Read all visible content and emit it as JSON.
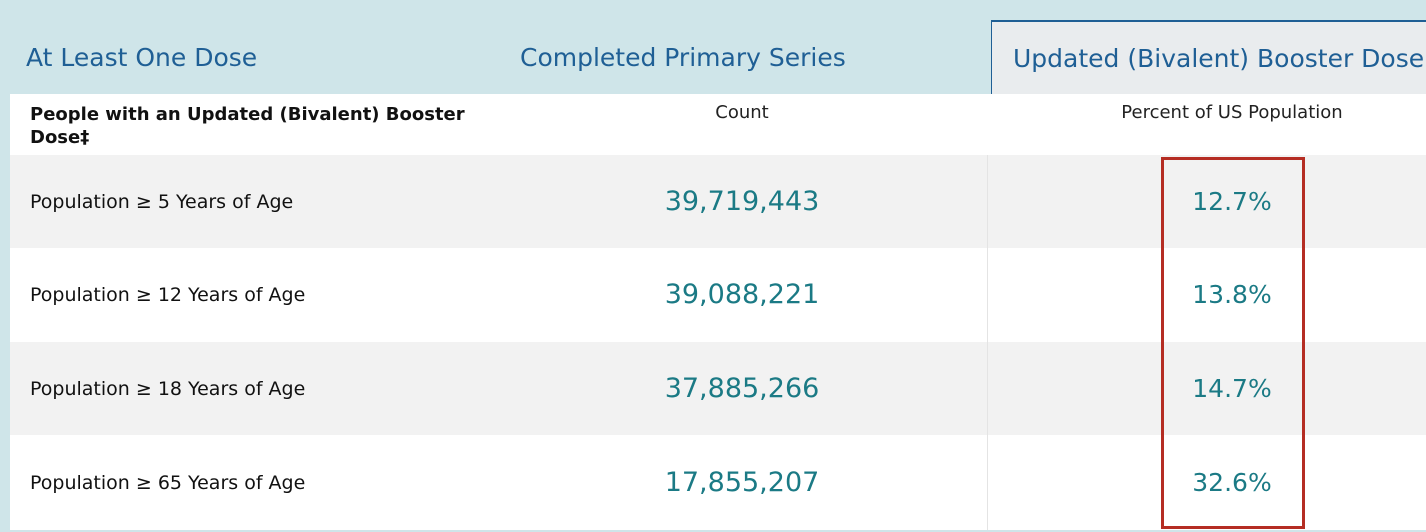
{
  "tabs": [
    {
      "label": "At Least One Dose",
      "active": false
    },
    {
      "label": "Completed Primary Series",
      "active": false
    },
    {
      "label": "Updated (Bivalent) Booster Dose",
      "active": true
    }
  ],
  "table": {
    "headers": {
      "group": "People with an Updated (Bivalent) Booster Dose‡",
      "count": "Count",
      "percent": "Percent of US Population"
    },
    "rows": [
      {
        "label": "Population ≥ 5 Years of Age",
        "count": "39,719,443",
        "percent": "12.7%"
      },
      {
        "label": "Population ≥ 12 Years of Age",
        "count": "39,088,221",
        "percent": "13.8%"
      },
      {
        "label": "Population ≥ 18 Years of Age",
        "count": "37,885,266",
        "percent": "14.7%"
      },
      {
        "label": "Population ≥ 65 Years of Age",
        "count": "17,855,207",
        "percent": "32.6%"
      }
    ]
  },
  "colors": {
    "tab_bar": "#cfe5e9",
    "tab_text": "#1f5f95",
    "value_text": "#1b7a85",
    "highlight": "#b52d23",
    "row_shade": "#f2f2f2"
  }
}
